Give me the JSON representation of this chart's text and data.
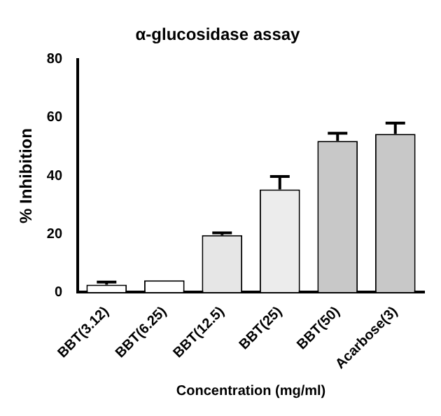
{
  "chart_data": {
    "type": "bar",
    "title": "α-glucosidase assay",
    "xlabel": "Concentration (mg/ml)",
    "ylabel": "% Inhibition",
    "categories": [
      "BBT(3.12)",
      "BBT(6.25)",
      "BBT(12.5)",
      "BBT(25)",
      "BBT(50)",
      "Acarbose(3)"
    ],
    "values": [
      2.6,
      4.1,
      19.6,
      35.3,
      52.0,
      54.4
    ],
    "colors": [
      "#ffffff",
      "#ffffff",
      "#e6e6e6",
      "#ececec",
      "#c8c8c8",
      "#c8c8c8"
    ],
    "errors": [
      [
        2.6,
        3.5
      ],
      null,
      [
        19.6,
        20.4
      ],
      [
        35.3,
        39.8
      ],
      [
        52.0,
        54.6
      ],
      [
        54.4,
        58.1
      ]
    ],
    "ylim": [
      0,
      80
    ],
    "yticks": [
      0,
      20,
      40,
      60,
      80
    ],
    "grid": false,
    "legend": false
  }
}
